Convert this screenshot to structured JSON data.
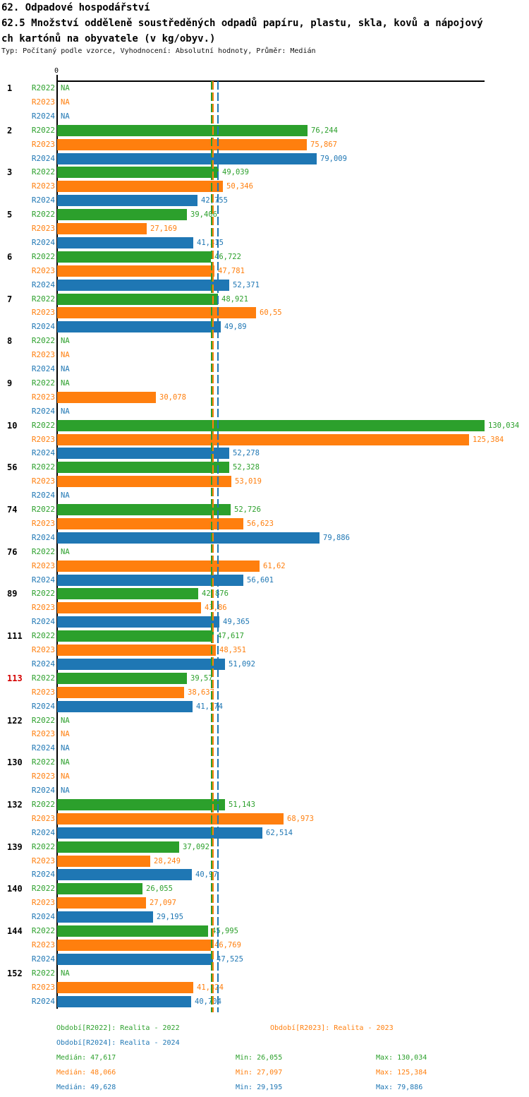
{
  "header": {
    "title": "62. Odpadové hospodářství",
    "subtitle_line1": "62.5 Množství odděleně soustředěných odpadů papíru, plastu, skla, kovů a nápojový",
    "subtitle_line2": "ch kartónů na obyvatele (v kg/obyv.)",
    "meta": "Typ: Počítaný podle vzorce, Vyhodnocení: Absolutní hodnoty, Průměr: Medián"
  },
  "axis": {
    "zero_label": "0"
  },
  "na_label": "NA",
  "highlight_color": "#d40000",
  "chart_data": {
    "type": "bar",
    "orientation": "horizontal",
    "title": "62.5 Množství odděleně soustředěných odpadů papíru, plastu, skla, kovů a nápojových kartónů na obyvatele (v kg/obyv.)",
    "xlabel": "kg/obyv.",
    "xlim": [
      0,
      130.034
    ],
    "grid": false,
    "legend_position": "bottom",
    "stat_labels": {
      "median": "Medián:",
      "min": "Min:",
      "max": "Max:"
    },
    "series": [
      {
        "id": "R2022",
        "label": "R2022",
        "color": "#2ca02c",
        "legend": "Období[R2022]: Realita - 2022",
        "median": "47,617",
        "min": "26,055",
        "max": "130,034"
      },
      {
        "id": "R2023",
        "label": "R2023",
        "color": "#ff7f0e",
        "legend": "Období[R2023]: Realita - 2023",
        "median": "48,066",
        "min": "27,097",
        "max": "125,384"
      },
      {
        "id": "R2024",
        "label": "R2024",
        "color": "#1f77b4",
        "legend": "Období[R2024]: Realita - 2024",
        "median": "49,628",
        "min": "29,195",
        "max": "79,886"
      }
    ],
    "groups": [
      {
        "id": "1",
        "highlight": false,
        "values": [
          null,
          null,
          null
        ]
      },
      {
        "id": "2",
        "highlight": false,
        "values": [
          "76,244",
          "75,867",
          "79,009"
        ]
      },
      {
        "id": "3",
        "highlight": false,
        "values": [
          "49,039",
          "50,346",
          "42,755"
        ]
      },
      {
        "id": "5",
        "highlight": false,
        "values": [
          "39,406",
          "27,169",
          "41,315"
        ]
      },
      {
        "id": "6",
        "highlight": false,
        "values": [
          "46,722",
          "47,781",
          "52,371"
        ]
      },
      {
        "id": "7",
        "highlight": false,
        "values": [
          "48,921",
          "60,55",
          "49,89"
        ]
      },
      {
        "id": "8",
        "highlight": false,
        "values": [
          null,
          null,
          null
        ]
      },
      {
        "id": "9",
        "highlight": false,
        "values": [
          null,
          "30,078",
          null
        ]
      },
      {
        "id": "10",
        "highlight": false,
        "values": [
          "130,034",
          "125,384",
          "52,278"
        ]
      },
      {
        "id": "56",
        "highlight": false,
        "values": [
          "52,328",
          "53,019",
          null
        ]
      },
      {
        "id": "74",
        "highlight": false,
        "values": [
          "52,726",
          "56,623",
          "79,886"
        ]
      },
      {
        "id": "76",
        "highlight": false,
        "values": [
          null,
          "61,62",
          "56,601"
        ]
      },
      {
        "id": "89",
        "highlight": false,
        "values": [
          "42,876",
          "43,86",
          "49,365"
        ]
      },
      {
        "id": "111",
        "highlight": false,
        "values": [
          "47,617",
          "48,351",
          "51,092"
        ]
      },
      {
        "id": "113",
        "highlight": true,
        "values": [
          "39,57",
          "38,637",
          "41,174"
        ]
      },
      {
        "id": "122",
        "highlight": false,
        "values": [
          null,
          null,
          null
        ]
      },
      {
        "id": "130",
        "highlight": false,
        "values": [
          null,
          null,
          null
        ]
      },
      {
        "id": "132",
        "highlight": false,
        "values": [
          "51,143",
          "68,973",
          "62,514"
        ]
      },
      {
        "id": "139",
        "highlight": false,
        "values": [
          "37,092",
          "28,249",
          "40,97"
        ]
      },
      {
        "id": "140",
        "highlight": false,
        "values": [
          "26,055",
          "27,097",
          "29,195"
        ]
      },
      {
        "id": "144",
        "highlight": false,
        "values": [
          "45,995",
          "46,769",
          "47,525"
        ]
      },
      {
        "id": "152",
        "highlight": false,
        "values": [
          null,
          "41,324",
          "40,704"
        ]
      }
    ]
  }
}
